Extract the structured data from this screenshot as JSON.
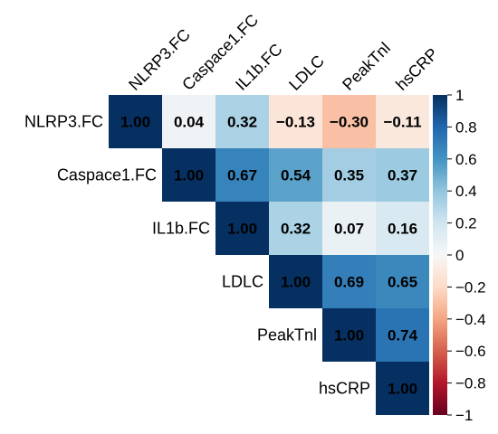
{
  "chart_data": {
    "type": "heatmap",
    "variables": [
      "NLRP3.FC",
      "Caspace1.FC",
      "IL1b.FC",
      "LDLC",
      "PeakTnl",
      "hsCRP"
    ],
    "layout": "upper-triangle",
    "matrix": [
      [
        "1.00",
        "0.04",
        "0.32",
        "−0.13",
        "−0.30",
        "−0.11"
      ],
      [
        null,
        "1.00",
        "0.67",
        "0.54",
        "0.35",
        "0.37"
      ],
      [
        null,
        null,
        "1.00",
        "0.32",
        "0.07",
        "0.16"
      ],
      [
        null,
        null,
        null,
        "1.00",
        "0.69",
        "0.65"
      ],
      [
        null,
        null,
        null,
        null,
        "1.00",
        "0.74"
      ],
      [
        null,
        null,
        null,
        null,
        null,
        "1.00"
      ]
    ],
    "colorbar": {
      "range": [
        -1,
        1
      ],
      "ticks": [
        "1",
        "0.8",
        "0.6",
        "0.4",
        "0.2",
        "0",
        "−0.2",
        "−0.4",
        "−0.6",
        "−0.8",
        "−1"
      ],
      "colors": [
        "#053061",
        "#2166AC",
        "#4393C3",
        "#92C5DE",
        "#D1E5F0",
        "#F7F7F7",
        "#FDDBC7",
        "#F4A582",
        "#D6604D",
        "#B2182B",
        "#67001F"
      ]
    }
  }
}
